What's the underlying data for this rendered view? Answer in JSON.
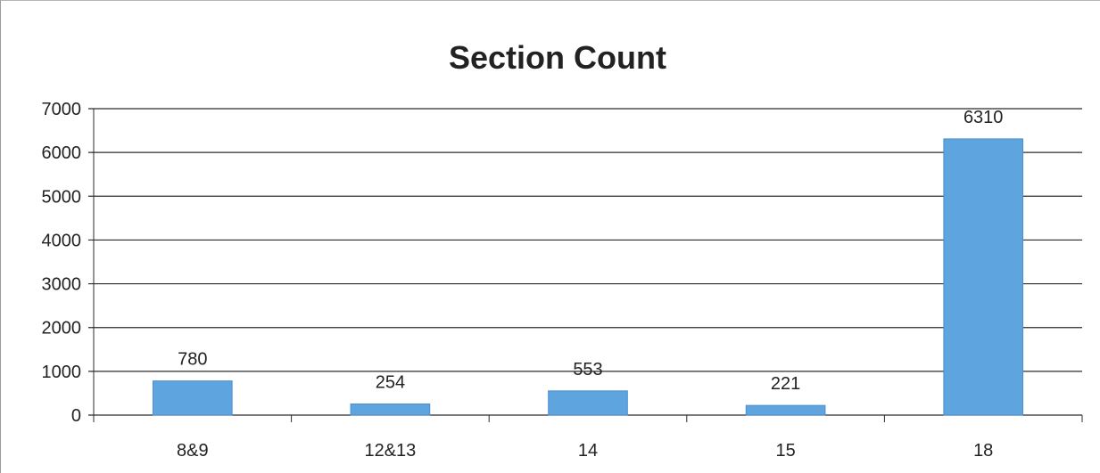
{
  "chart_data": {
    "type": "bar",
    "title": "Section Count",
    "categories": [
      "8&9",
      "12&13",
      "14",
      "15",
      "18"
    ],
    "values": [
      780,
      254,
      553,
      221,
      6310
    ],
    "data_labels": [
      "780",
      "254",
      "553",
      "221",
      "6310"
    ],
    "ylim": [
      0,
      7000
    ],
    "yticks": [
      0,
      1000,
      2000,
      3000,
      4000,
      5000,
      6000,
      7000
    ],
    "xlabel": "",
    "ylabel": "",
    "grid": true,
    "legend": "none",
    "colors": {
      "bar": "#5ea5e0",
      "bar_edge": "#4a8fcc",
      "grid": "#2b2b2b",
      "axis": "#2b2b2b",
      "text": "#222222"
    }
  }
}
